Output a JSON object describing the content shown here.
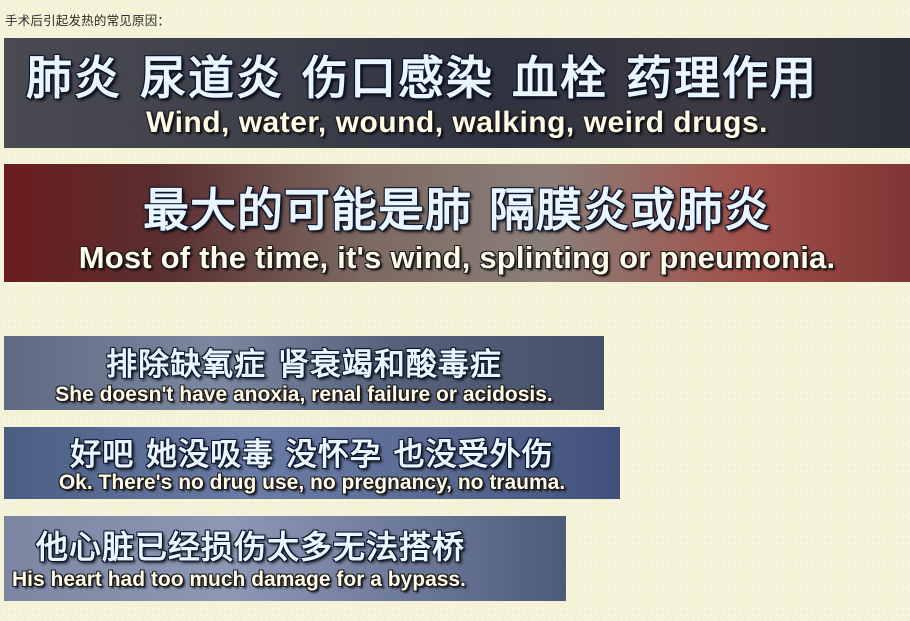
{
  "heading": "手术后引起发热的常见原因：",
  "frames": [
    {
      "zh": "肺炎  尿道炎  伤口感染  血栓  药理作用",
      "en": "Wind, water, wound, walking, weird drugs."
    },
    {
      "zh": "最大的可能是肺  隔膜炎或肺炎",
      "en": "Most of the time, it's wind, splinting or pneumonia."
    },
    {
      "zh": "排除缺氧症  肾衰竭和酸毒症",
      "en": "She doesn't have anoxia, renal failure or acidosis."
    },
    {
      "zh": "好吧  她没吸毒  没怀孕  也没受外伤",
      "en": "Ok. There's no drug use, no pregnancy, no trauma."
    },
    {
      "zh": "他心脏已经损伤太多无法搭桥",
      "en": "His heart had too much damage for a bypass."
    }
  ]
}
